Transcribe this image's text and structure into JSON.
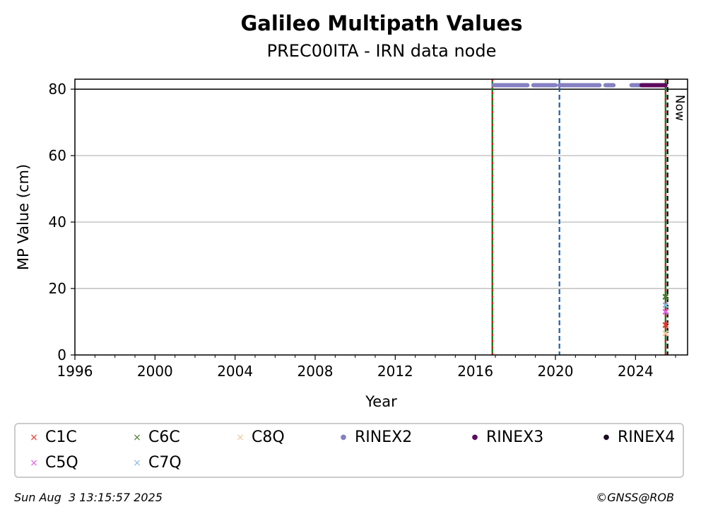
{
  "title": "Galileo Multipath Values",
  "subtitle": "PREC00ITA - IRN data node",
  "chart_data": {
    "type": "scatter",
    "title": "Galileo Multipath Values",
    "subtitle": "PREC00ITA - IRN data node",
    "xlabel": "Year",
    "ylabel": "MP Value (cm)",
    "xlim": [
      1996,
      2026.6
    ],
    "ylim": [
      0,
      83
    ],
    "xticks": [
      "1996",
      "2000",
      "2004",
      "2008",
      "2012",
      "2016",
      "2020",
      "2024"
    ],
    "yticks": [
      "0",
      "20",
      "40",
      "60",
      "80"
    ],
    "grid": "horizontal",
    "hline": 80,
    "vlines": [
      {
        "x": 2016.85,
        "style": "red-green-dashed"
      },
      {
        "x": 2020.2,
        "style": "blue-dashed",
        "color": "#1f5fa8"
      },
      {
        "x": 2025.5,
        "style": "red-green-dashed"
      },
      {
        "x": 2025.6,
        "style": "black-dashed",
        "label": "Now"
      }
    ],
    "series": [
      {
        "name": "C1C",
        "marker": "x",
        "color": "#e8382c",
        "points": [
          [
            2025.5,
            9
          ]
        ]
      },
      {
        "name": "C6C",
        "marker": "x",
        "color": "#4a7a2e",
        "points": [
          [
            2025.5,
            17.5
          ]
        ]
      },
      {
        "name": "C8Q",
        "marker": "x",
        "color": "#f0c8a0",
        "points": [
          [
            2025.5,
            6.5
          ]
        ]
      },
      {
        "name": "RINEX2",
        "marker": "o",
        "color": "#8580c0",
        "segments": [
          [
            2016.9,
            2018.6
          ],
          [
            2018.9,
            2020.0
          ],
          [
            2020.2,
            2022.2
          ],
          [
            2022.5,
            2022.9
          ],
          [
            2023.8,
            2024.4
          ]
        ],
        "y": 81.2
      },
      {
        "name": "RINEX3",
        "marker": "o",
        "color": "#5e0a5e",
        "segments": [
          [
            2024.3,
            2025.5
          ]
        ],
        "y": 81.2
      },
      {
        "name": "RINEX4",
        "marker": "o",
        "color": "#1a0a22",
        "points": []
      },
      {
        "name": "C5Q",
        "marker": "x",
        "color": "#e85ce8",
        "points": [
          [
            2025.5,
            13
          ]
        ]
      },
      {
        "name": "C7Q",
        "marker": "x",
        "color": "#8ab8e0",
        "points": [
          [
            2025.5,
            15
          ]
        ]
      }
    ]
  },
  "legend": [
    {
      "label": "C1C",
      "symbol": "×",
      "color": "#e8382c"
    },
    {
      "label": "C6C",
      "symbol": "×",
      "color": "#4a7a2e"
    },
    {
      "label": "C8Q",
      "symbol": "×",
      "color": "#f0c8a0"
    },
    {
      "label": "RINEX2",
      "symbol": "●",
      "color": "#8580c0"
    },
    {
      "label": "RINEX3",
      "symbol": "●",
      "color": "#5e0a5e"
    },
    {
      "label": "RINEX4",
      "symbol": "●",
      "color": "#1a0a22"
    },
    {
      "label": "C5Q",
      "symbol": "×",
      "color": "#e85ce8"
    },
    {
      "label": "C7Q",
      "symbol": "×",
      "color": "#8ab8e0"
    }
  ],
  "footer": {
    "timestamp": "Sun Aug  3 13:15:57 2025",
    "copyright": "©GNSS@ROB"
  }
}
